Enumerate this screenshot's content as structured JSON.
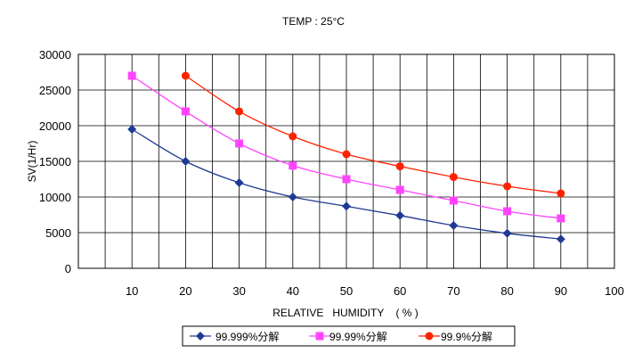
{
  "chart_data": {
    "type": "line",
    "title": "TEMP : 25°C",
    "xlabel": "RELATIVE   HUMIDITY    ( % )",
    "ylabel": "SV(1/Hr)",
    "xlim": [
      0,
      100
    ],
    "ylim": [
      0,
      30000
    ],
    "x_ticks": [
      10,
      20,
      30,
      40,
      50,
      60,
      70,
      80,
      90,
      100
    ],
    "y_ticks": [
      0,
      5000,
      10000,
      15000,
      20000,
      25000,
      30000
    ],
    "grid": true,
    "legend_position": "bottom",
    "series": [
      {
        "name": "99.999%分解",
        "color": "#1f3a93",
        "marker": "diamond",
        "x": [
          10,
          20,
          30,
          40,
          50,
          60,
          70,
          80,
          90
        ],
        "values": [
          19500,
          15000,
          12000,
          10000,
          8700,
          7400,
          6000,
          4900,
          4100
        ]
      },
      {
        "name": "99.99%分解",
        "color": "#ff44ff",
        "marker": "square",
        "x": [
          10,
          20,
          30,
          40,
          50,
          60,
          70,
          80,
          90
        ],
        "values": [
          27000,
          22000,
          17500,
          14400,
          12500,
          11000,
          9500,
          8000,
          7000
        ]
      },
      {
        "name": "99.9%分解",
        "color": "#ff2200",
        "marker": "circle",
        "x": [
          20,
          30,
          40,
          50,
          60,
          70,
          80,
          90
        ],
        "values": [
          27000,
          22000,
          18500,
          16000,
          14300,
          12800,
          11500,
          10500
        ]
      }
    ]
  }
}
